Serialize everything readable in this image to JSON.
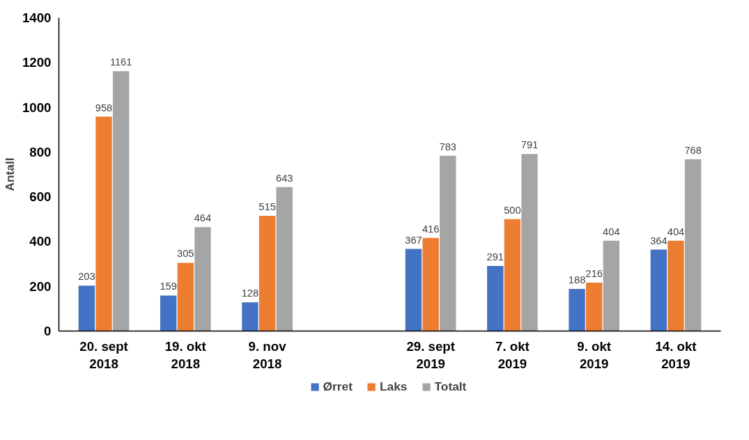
{
  "chart_data": {
    "type": "bar",
    "ylabel": "Antall",
    "categories": [
      "20. sept\n2018",
      "19. okt\n2018",
      "9. nov\n2018",
      null,
      "29. sept\n2019",
      "7. okt\n2019",
      "9. okt\n2019",
      "14. okt\n2019"
    ],
    "series": [
      {
        "name": "Ørret",
        "color": "#4472c4",
        "values": [
          203,
          159,
          128,
          null,
          367,
          291,
          188,
          364
        ]
      },
      {
        "name": "Laks",
        "color": "#ed7d31",
        "values": [
          958,
          305,
          515,
          null,
          416,
          500,
          216,
          404
        ]
      },
      {
        "name": "Totalt",
        "color": "#a5a5a5",
        "values": [
          1161,
          464,
          643,
          null,
          783,
          791,
          404,
          768
        ]
      }
    ],
    "ylim": [
      0,
      1400
    ],
    "yticks": [
      0,
      200,
      400,
      600,
      800,
      1000,
      1200,
      1400
    ],
    "data_labels": true,
    "grid": false,
    "legend": "bottom"
  }
}
